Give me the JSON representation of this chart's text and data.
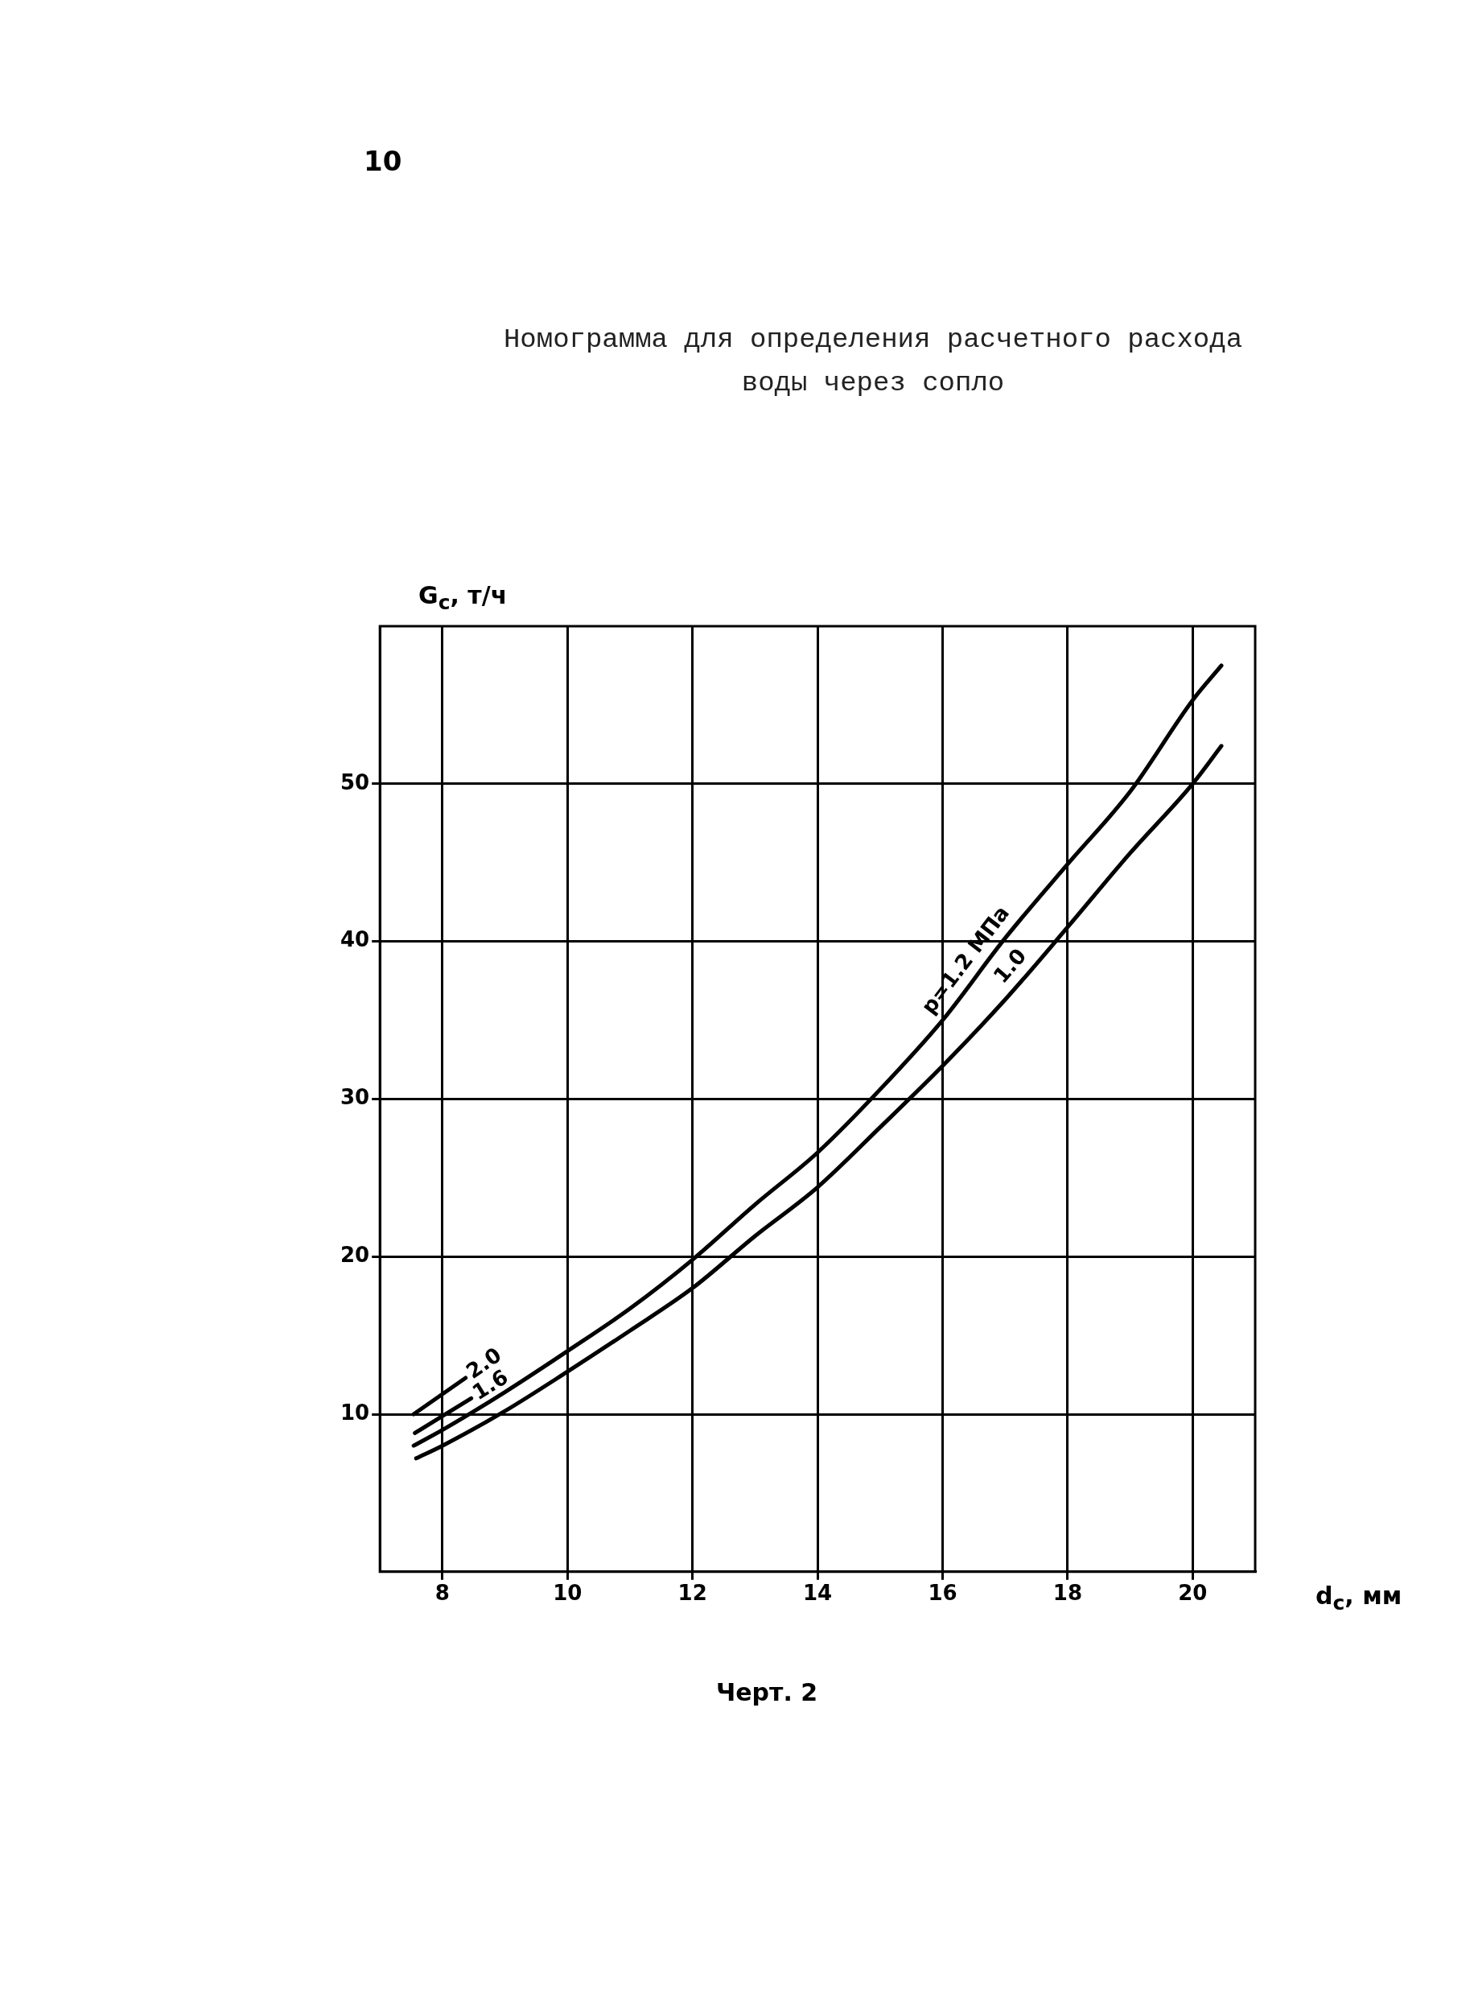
{
  "chart_data": {
    "type": "line",
    "title": "Номограмма для определения расчетного расхода\nводы через сопло",
    "xlabel": "d$_{c}$, мм",
    "ylabel": "G$_{c}$, т/ч",
    "annotations": [
      "10",
      "Черт. 2"
    ],
    "xlim": [
      7,
      21
    ],
    "ylim": [
      0,
      60
    ],
    "xticks": [
      8,
      10,
      12,
      14,
      16,
      18,
      20
    ],
    "yticks": [
      10,
      20,
      30,
      40,
      50
    ],
    "grid": true,
    "legend": false,
    "marker": "none",
    "line_style": "solid",
    "series": [
      {
        "name": "2.0",
        "color": "#000000",
        "x": [
          7.54,
          8.37
        ],
        "values": [
          10.0,
          12.3
        ]
      },
      {
        "name": "1.6",
        "color": "#000000",
        "x": [
          7.56,
          8.46
        ],
        "values": [
          8.8,
          11.0
        ]
      },
      {
        "name": "p=1.2 МПа",
        "color": "#000000",
        "x": [
          7.54,
          8,
          9,
          10,
          11,
          12,
          13,
          14,
          15,
          16,
          17,
          18,
          19,
          20,
          20.46
        ],
        "values": [
          8.0,
          9.0,
          11.4,
          14.0,
          16.7,
          19.8,
          23.3,
          26.6,
          30.6,
          35.0,
          40.2,
          44.9,
          49.5,
          55.3,
          57.5
        ]
      },
      {
        "name": "1.0",
        "color": "#000000",
        "x": [
          7.58,
          8,
          9,
          10,
          11,
          12,
          13,
          14,
          15,
          16,
          17,
          18,
          19,
          20,
          20.46
        ],
        "values": [
          7.2,
          8.0,
          10.2,
          12.7,
          15.3,
          18.0,
          21.3,
          24.4,
          28.2,
          32.1,
          36.3,
          40.9,
          45.6,
          50.0,
          52.4
        ]
      }
    ]
  }
}
